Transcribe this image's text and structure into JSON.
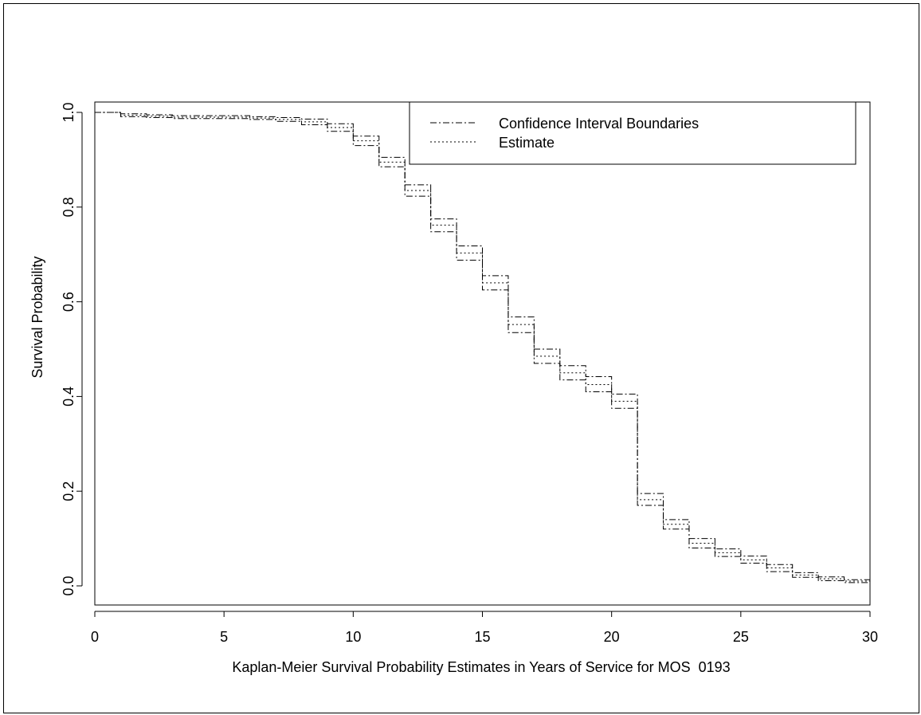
{
  "chart_data": {
    "type": "line",
    "title": "",
    "xlabel": "Kaplan-Meier Survival Probability Estimates in Years of Service for MOS  0193",
    "ylabel": "Survival Probability",
    "xlim": [
      0,
      30
    ],
    "ylim": [
      0.0,
      1.0
    ],
    "xticks": [
      0,
      5,
      10,
      15,
      20,
      25,
      30
    ],
    "yticks": [
      0.0,
      0.2,
      0.4,
      0.6,
      0.8,
      1.0
    ],
    "xtick_labels": [
      "0",
      "5",
      "10",
      "15",
      "20",
      "25",
      "30"
    ],
    "ytick_labels": [
      "0.0",
      "0.2",
      "0.4",
      "0.6",
      "0.8",
      "1.0"
    ],
    "step": true,
    "grid": false,
    "legend_position": "top-right",
    "x": [
      0,
      1,
      2,
      3,
      4,
      5,
      6,
      7,
      8,
      9,
      10,
      11,
      12,
      13,
      14,
      15,
      16,
      17,
      18,
      19,
      20,
      21,
      22,
      23,
      24,
      25,
      26,
      27,
      28,
      29,
      30
    ],
    "series": [
      {
        "name": "Estimate",
        "style": "dotted",
        "values": [
          1.0,
          0.994,
          0.992,
          0.99,
          0.99,
          0.99,
          0.988,
          0.985,
          0.98,
          0.968,
          0.94,
          0.895,
          0.835,
          0.762,
          0.703,
          0.64,
          0.552,
          0.485,
          0.45,
          0.425,
          0.39,
          0.182,
          0.13,
          0.09,
          0.07,
          0.055,
          0.038,
          0.023,
          0.015,
          0.01,
          0.01
        ]
      },
      {
        "name": "Confidence Interval Boundaries",
        "style": "dashdot",
        "values": [
          1.0,
          0.997,
          0.995,
          0.993,
          0.993,
          0.993,
          0.991,
          0.989,
          0.986,
          0.976,
          0.95,
          0.905,
          0.847,
          0.775,
          0.718,
          0.655,
          0.568,
          0.5,
          0.465,
          0.442,
          0.405,
          0.195,
          0.14,
          0.1,
          0.078,
          0.063,
          0.045,
          0.028,
          0.019,
          0.013,
          0.013
        ]
      },
      {
        "name": "Confidence Interval Boundaries",
        "style": "dashdot",
        "values": [
          1.0,
          0.991,
          0.989,
          0.987,
          0.987,
          0.987,
          0.985,
          0.981,
          0.974,
          0.96,
          0.93,
          0.885,
          0.823,
          0.748,
          0.688,
          0.625,
          0.535,
          0.47,
          0.435,
          0.41,
          0.375,
          0.17,
          0.12,
          0.08,
          0.062,
          0.048,
          0.03,
          0.018,
          0.011,
          0.007,
          0.007
        ]
      }
    ]
  }
}
